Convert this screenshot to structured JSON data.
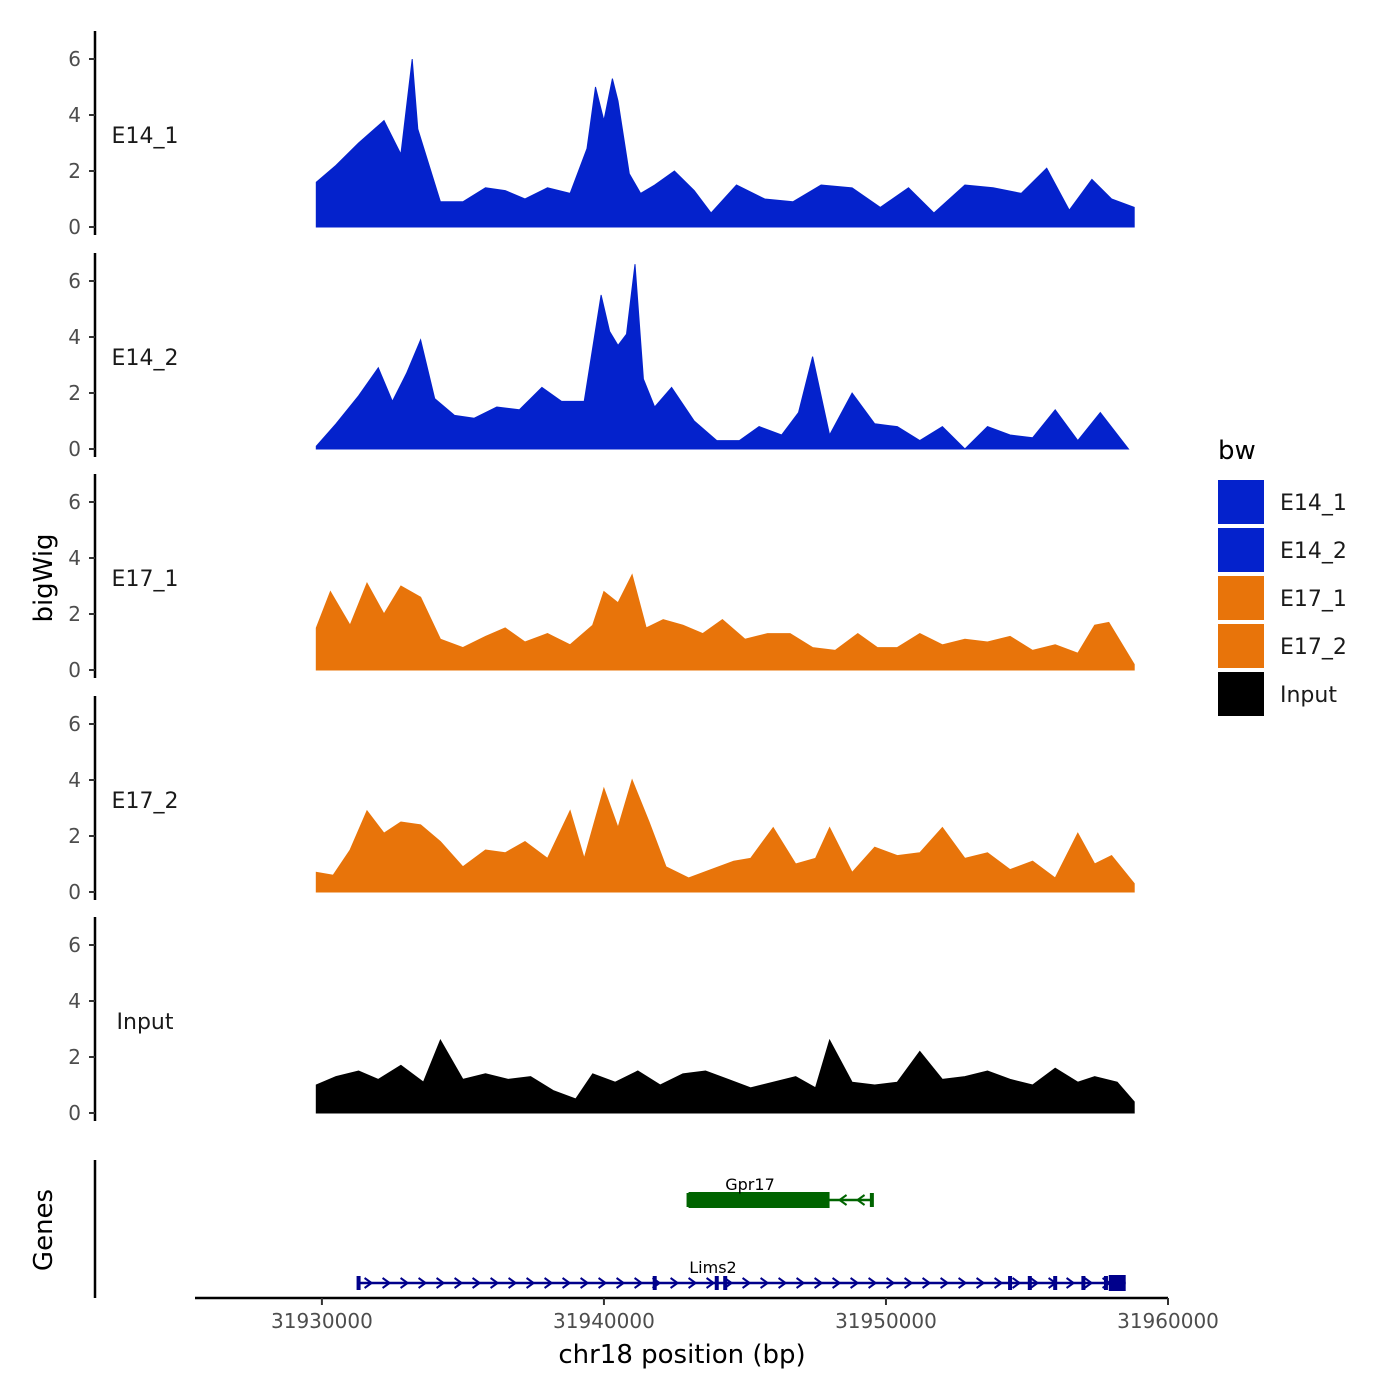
{
  "chart_data": {
    "type": "area",
    "layout": "stacked-tracks",
    "y_axis_title": "bigWig",
    "genes_axis_title": "Genes",
    "x_axis_title": "chr18 position (bp)",
    "xlim": [
      31925500,
      31960000
    ],
    "x_ticks": [
      31930000,
      31940000,
      31950000,
      31960000
    ],
    "x_tick_labels": [
      "31930000",
      "31940000",
      "31950000",
      "31960000"
    ],
    "ylim": [
      0,
      7
    ],
    "y_ticks": [
      0,
      2,
      4,
      6
    ],
    "y_tick_labels": [
      "0",
      "2",
      "4",
      "6"
    ],
    "legend": {
      "title": "bw",
      "entries": [
        {
          "label": "E14_1",
          "color": "#0422CC"
        },
        {
          "label": "E14_2",
          "color": "#0422CC"
        },
        {
          "label": "E17_1",
          "color": "#E8740A"
        },
        {
          "label": "E17_2",
          "color": "#E8740A"
        },
        {
          "label": "Input",
          "color": "#000000"
        }
      ]
    },
    "series": [
      {
        "name": "E14_1",
        "color": "#0422CC",
        "x": [
          31929800,
          31930500,
          31931300,
          31932200,
          31932800,
          31933200,
          31933400,
          31933800,
          31934200,
          31935000,
          31935800,
          31936500,
          31937200,
          31938000,
          31938800,
          31939400,
          31939700,
          31940000,
          31940300,
          31940500,
          31940900,
          31941300,
          31941800,
          31942500,
          31943200,
          31943800,
          31944700,
          31945700,
          31946700,
          31947700,
          31948800,
          31949800,
          31950800,
          31951700,
          31952800,
          31953800,
          31954800,
          31955700,
          31956500,
          31957300,
          31958000,
          31958800
        ],
        "y": [
          1.6,
          2.2,
          3.0,
          3.8,
          2.6,
          6.0,
          3.5,
          2.2,
          0.9,
          0.9,
          1.4,
          1.3,
          1.0,
          1.4,
          1.2,
          2.8,
          5.0,
          3.8,
          5.3,
          4.5,
          1.9,
          1.2,
          1.5,
          2.0,
          1.3,
          0.5,
          1.5,
          1.0,
          0.9,
          1.5,
          1.4,
          0.7,
          1.4,
          0.5,
          1.5,
          1.4,
          1.2,
          2.1,
          0.6,
          1.7,
          1.0,
          0.7
        ]
      },
      {
        "name": "E14_2",
        "color": "#0422CC",
        "x": [
          31929800,
          31930500,
          31931300,
          31932000,
          31932500,
          31933000,
          31933500,
          31934000,
          31934700,
          31935400,
          31936200,
          31937000,
          31937800,
          31938500,
          31939300,
          31939900,
          31940200,
          31940500,
          31940800,
          31941100,
          31941400,
          31941800,
          31942400,
          31943200,
          31944000,
          31944800,
          31945500,
          31946300,
          31946900,
          31947400,
          31948000,
          31948800,
          31949600,
          31950400,
          31951200,
          31952000,
          31952800,
          31953600,
          31954400,
          31955200,
          31956000,
          31956800,
          31957600,
          31958600
        ],
        "y": [
          0.1,
          0.9,
          1.9,
          2.9,
          1.7,
          2.7,
          3.9,
          1.8,
          1.2,
          1.1,
          1.5,
          1.4,
          2.2,
          1.7,
          1.7,
          5.5,
          4.2,
          3.7,
          4.1,
          6.6,
          2.5,
          1.5,
          2.2,
          1.0,
          0.3,
          0.3,
          0.8,
          0.5,
          1.3,
          3.3,
          0.5,
          2.0,
          0.9,
          0.8,
          0.3,
          0.8,
          0.0,
          0.8,
          0.5,
          0.4,
          1.4,
          0.3,
          1.3,
          0.0
        ]
      },
      {
        "name": "E17_1",
        "color": "#E8740A",
        "x": [
          31929800,
          31930300,
          31931000,
          31931600,
          31932200,
          31932800,
          31933500,
          31934200,
          31935000,
          31935800,
          31936500,
          31937200,
          31938000,
          31938800,
          31939600,
          31940000,
          31940500,
          31941000,
          31941500,
          31942100,
          31942800,
          31943500,
          31944200,
          31945000,
          31945800,
          31946600,
          31947400,
          31948200,
          31949000,
          31949700,
          31950400,
          31951200,
          31952000,
          31952800,
          31953600,
          31954400,
          31955200,
          31956000,
          31956800,
          31957400,
          31957900,
          31958800
        ],
        "y": [
          1.5,
          2.8,
          1.6,
          3.1,
          2.0,
          3.0,
          2.6,
          1.1,
          0.8,
          1.2,
          1.5,
          1.0,
          1.3,
          0.9,
          1.6,
          2.8,
          2.4,
          3.4,
          1.5,
          1.8,
          1.6,
          1.3,
          1.8,
          1.1,
          1.3,
          1.3,
          0.8,
          0.7,
          1.3,
          0.8,
          0.8,
          1.3,
          0.9,
          1.1,
          1.0,
          1.2,
          0.7,
          0.9,
          0.6,
          1.6,
          1.7,
          0.2
        ]
      },
      {
        "name": "E17_2",
        "color": "#E8740A",
        "x": [
          31929800,
          31930400,
          31931000,
          31931600,
          31932200,
          31932800,
          31933500,
          31934200,
          31935000,
          31935800,
          31936500,
          31937200,
          31938000,
          31938800,
          31939300,
          31940000,
          31940500,
          31941000,
          31941600,
          31942200,
          31943000,
          31943800,
          31944600,
          31945200,
          31946000,
          31946800,
          31947500,
          31948000,
          31948800,
          31949600,
          31950400,
          31951200,
          31952000,
          31952800,
          31953600,
          31954400,
          31955200,
          31956000,
          31956800,
          31957400,
          31958000,
          31958800
        ],
        "y": [
          0.7,
          0.6,
          1.5,
          2.9,
          2.1,
          2.5,
          2.4,
          1.8,
          0.9,
          1.5,
          1.4,
          1.8,
          1.2,
          2.9,
          1.2,
          3.7,
          2.3,
          4.0,
          2.5,
          0.9,
          0.5,
          0.8,
          1.1,
          1.2,
          2.3,
          1.0,
          1.2,
          2.3,
          0.7,
          1.6,
          1.3,
          1.4,
          2.3,
          1.2,
          1.4,
          0.8,
          1.1,
          0.5,
          2.1,
          1.0,
          1.3,
          0.3
        ]
      },
      {
        "name": "Input",
        "color": "#000000",
        "x": [
          31929800,
          31930500,
          31931300,
          31932000,
          31932800,
          31933600,
          31934200,
          31935000,
          31935800,
          31936600,
          31937400,
          31938200,
          31939000,
          31939600,
          31940400,
          31941200,
          31942000,
          31942800,
          31943600,
          31944400,
          31945200,
          31946000,
          31946800,
          31947500,
          31948000,
          31948800,
          31949600,
          31950400,
          31951200,
          31952000,
          31952800,
          31953600,
          31954400,
          31955200,
          31956000,
          31956800,
          31957400,
          31958200,
          31958800
        ],
        "y": [
          1.0,
          1.3,
          1.5,
          1.2,
          1.7,
          1.1,
          2.6,
          1.2,
          1.4,
          1.2,
          1.3,
          0.8,
          0.5,
          1.4,
          1.1,
          1.5,
          1.0,
          1.4,
          1.5,
          1.2,
          0.9,
          1.1,
          1.3,
          0.9,
          2.6,
          1.1,
          1.0,
          1.1,
          2.2,
          1.2,
          1.3,
          1.5,
          1.2,
          1.0,
          1.6,
          1.1,
          1.3,
          1.1,
          0.4
        ]
      }
    ],
    "genes": [
      {
        "name": "Gpr17",
        "color": "#006400",
        "strand": "-",
        "start": 31943000,
        "end": 31949500,
        "thick_start": 31943000,
        "thick_end": 31948000
      },
      {
        "name": "Lims2",
        "color": "#00008B",
        "strand": "+",
        "start": 31931300,
        "end": 31958500,
        "thick_start": 31957900,
        "thick_end": 31958500,
        "exons": [
          31931300,
          31941800,
          31944000,
          31944300,
          31954400,
          31955100,
          31956000,
          31957000,
          31957800
        ]
      }
    ]
  }
}
